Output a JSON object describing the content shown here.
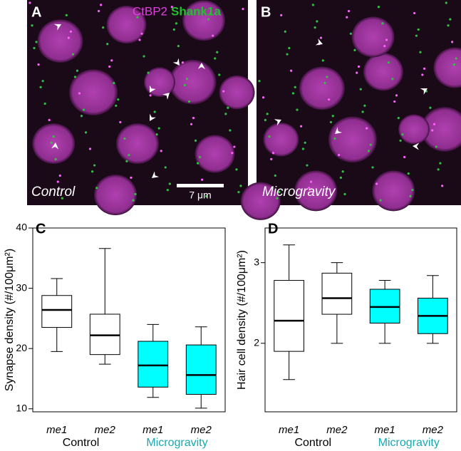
{
  "images": [
    {
      "label": "A",
      "legend": [
        {
          "name": "CtBP2",
          "color": "#e040e0"
        },
        {
          "name": "Shank1a",
          "color": "#22c030"
        }
      ],
      "caption": "Control",
      "scale_bar": "7 μm"
    },
    {
      "label": "B",
      "caption": "Microgravity"
    }
  ],
  "chart_data": [
    {
      "type": "box",
      "label": "C",
      "y_label": "Synapse density (#/100μm²)",
      "categories": [
        "me1",
        "me2",
        "me1",
        "me2"
      ],
      "groups": [
        {
          "name": "Control",
          "color": "#000000",
          "span": [
            0,
            1
          ]
        },
        {
          "name": "Microgravity",
          "color": "#1aa8b0",
          "span": [
            2,
            3
          ]
        }
      ],
      "boxes": [
        {
          "whisker_low": 19.5,
          "q1": 23.5,
          "median": 26.4,
          "q3": 28.8,
          "whisker_high": 31.6,
          "fill": "#ffffff"
        },
        {
          "whisker_low": 17.4,
          "q1": 19.0,
          "median": 22.2,
          "q3": 25.7,
          "whisker_high": 36.6,
          "fill": "#ffffff"
        },
        {
          "whisker_low": 11.9,
          "q1": 13.6,
          "median": 17.2,
          "q3": 21.2,
          "whisker_high": 24.0,
          "fill": "#00ffff"
        },
        {
          "whisker_low": 10.1,
          "q1": 12.4,
          "median": 15.6,
          "q3": 20.6,
          "whisker_high": 23.6,
          "fill": "#00ffff"
        }
      ],
      "ylim": [
        9.5,
        40
      ],
      "yticks": [
        10,
        20,
        30,
        40
      ]
    },
    {
      "type": "box",
      "label": "D",
      "y_label": "Hair cell density (#/100μm²)",
      "categories": [
        "me1",
        "me2",
        "me1",
        "me2"
      ],
      "groups": [
        {
          "name": "Control",
          "color": "#000000",
          "span": [
            0,
            1
          ]
        },
        {
          "name": "Microgravity",
          "color": "#1aa8b0",
          "span": [
            2,
            3
          ]
        }
      ],
      "boxes": [
        {
          "whisker_low": 1.55,
          "q1": 1.9,
          "median": 2.28,
          "q3": 2.78,
          "whisker_high": 3.22,
          "fill": "#ffffff"
        },
        {
          "whisker_low": 2.0,
          "q1": 2.36,
          "median": 2.56,
          "q3": 2.87,
          "whisker_high": 3.0,
          "fill": "#ffffff"
        },
        {
          "whisker_low": 2.0,
          "q1": 2.25,
          "median": 2.45,
          "q3": 2.67,
          "whisker_high": 2.78,
          "fill": "#00ffff"
        },
        {
          "whisker_low": 2.0,
          "q1": 2.12,
          "median": 2.34,
          "q3": 2.56,
          "whisker_high": 2.84,
          "fill": "#00ffff"
        }
      ],
      "ylim": [
        1.15,
        3.43
      ],
      "yticks": [
        2,
        3
      ]
    }
  ]
}
